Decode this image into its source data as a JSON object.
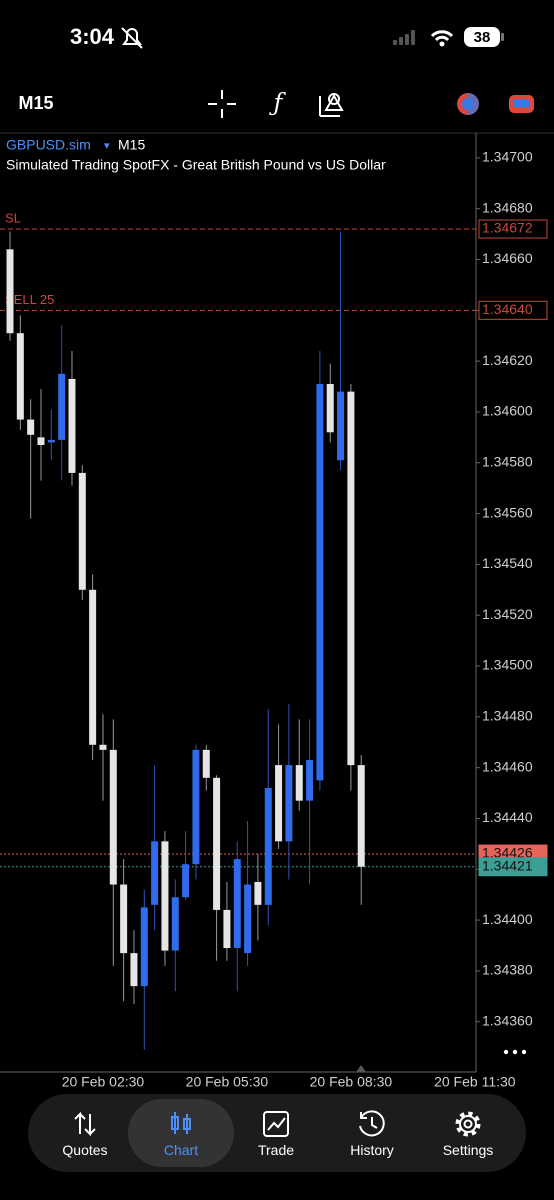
{
  "status_bar": {
    "time": "3:04",
    "battery": "38"
  },
  "toolbar": {
    "timeframe": "M15"
  },
  "chart_data": {
    "type": "candlestick",
    "symbol": "GBPUSD.sim",
    "timeframe": "M15",
    "subtitle": "Simulated Trading SpotFX - Great British Pound vs US Dollar",
    "up_color": "#2f6bea",
    "down_color": "#e6e6e6",
    "x": [
      null,
      null,
      null,
      null,
      null,
      null,
      null,
      null,
      null,
      "20 Feb 02:30",
      null,
      null,
      null,
      null,
      null,
      null,
      null,
      null,
      null,
      null,
      null,
      "20 Feb 05:30",
      null,
      null,
      null,
      null,
      null,
      null,
      null,
      null,
      null,
      null,
      null,
      "20 Feb 08:30",
      null,
      null,
      null,
      null,
      null,
      null,
      null,
      null,
      null,
      null,
      null,
      "20 Feb 11:30"
    ],
    "open": [
      1.34664,
      1.34631,
      1.34597,
      1.3459,
      1.34588,
      1.34589,
      1.34613,
      1.34576,
      1.3453,
      1.34469,
      1.34467,
      1.34414,
      1.34387,
      1.34374,
      1.34406,
      1.34431,
      1.34388,
      1.34409,
      1.34422,
      1.34467,
      1.34456,
      1.34404,
      1.34389,
      1.34387,
      1.34415,
      1.34406,
      1.34461,
      1.34431,
      1.34461,
      1.34447,
      1.34455,
      1.34611,
      1.34581,
      1.34608,
      1.34461,
      null,
      null,
      null,
      null,
      null,
      null,
      null,
      null,
      null,
      null,
      null
    ],
    "high": [
      1.34671,
      1.34638,
      1.34605,
      1.34609,
      1.34601,
      1.34634,
      1.34624,
      1.34579,
      1.34536,
      1.34481,
      1.34479,
      1.34424,
      1.34396,
      1.34412,
      1.34461,
      1.34435,
      1.34416,
      1.34435,
      1.34469,
      1.34469,
      1.34457,
      1.34415,
      1.34431,
      1.34439,
      1.34426,
      1.34483,
      1.34477,
      1.34485,
      1.34479,
      1.34479,
      1.34624,
      1.34619,
      1.34671,
      1.34611,
      1.34465,
      null,
      null,
      null,
      null,
      null,
      null,
      null,
      null,
      null,
      null,
      null
    ],
    "low": [
      1.34628,
      1.34593,
      1.34558,
      1.34573,
      1.34581,
      1.34573,
      1.34571,
      1.34526,
      1.34463,
      1.34447,
      1.34382,
      1.34368,
      1.34367,
      1.34349,
      1.34396,
      1.34382,
      1.34372,
      1.34408,
      1.34416,
      1.34451,
      1.34384,
      1.34384,
      1.34372,
      1.34382,
      1.34392,
      1.34398,
      1.34428,
      1.34416,
      1.34443,
      1.34414,
      1.34451,
      1.34588,
      1.34577,
      1.34451,
      1.34406,
      null,
      null,
      null,
      null,
      null,
      null,
      null,
      null,
      null,
      null,
      null
    ],
    "close": [
      1.34631,
      1.34597,
      1.34591,
      1.34587,
      1.34589,
      1.34615,
      1.34576,
      1.3453,
      1.34469,
      1.34467,
      1.34414,
      1.34387,
      1.34374,
      1.34405,
      1.34431,
      1.34388,
      1.34409,
      1.34422,
      1.34467,
      1.34456,
      1.34404,
      1.34389,
      1.34424,
      1.34414,
      1.34406,
      1.34452,
      1.34431,
      1.34461,
      1.34447,
      1.34463,
      1.34611,
      1.34592,
      1.34608,
      1.34461,
      1.34421,
      null,
      null,
      null,
      null,
      null,
      null,
      null,
      null,
      null,
      null,
      null
    ],
    "ylim": [
      1.34341,
      1.34709
    ],
    "yticks": [
      {
        "value": 1.347,
        "label": "1.34700"
      },
      {
        "value": 1.3468,
        "label": "1.34680"
      },
      {
        "value": 1.3466,
        "label": "1.34660"
      },
      {
        "value": 1.3464,
        "label": "1.34640"
      },
      {
        "value": 1.3462,
        "label": "1.34620"
      },
      {
        "value": 1.346,
        "label": "1.34600"
      },
      {
        "value": 1.3458,
        "label": "1.34580"
      },
      {
        "value": 1.3456,
        "label": "1.34560"
      },
      {
        "value": 1.3454,
        "label": "1.34540"
      },
      {
        "value": 1.3452,
        "label": "1.34520"
      },
      {
        "value": 1.345,
        "label": "1.34500"
      },
      {
        "value": 1.3448,
        "label": "1.34480"
      },
      {
        "value": 1.3446,
        "label": "1.34460"
      },
      {
        "value": 1.3444,
        "label": "1.34440"
      },
      {
        "value": 1.3442,
        "label": "1.34420"
      },
      {
        "value": 1.344,
        "label": "1.34400"
      },
      {
        "value": 1.3438,
        "label": "1.34380"
      },
      {
        "value": 1.3436,
        "label": "1.34360"
      }
    ],
    "levels": [
      {
        "name": "SL",
        "value": 1.34672,
        "label": "1.34672",
        "color": "#c9483d",
        "style": "dashed"
      },
      {
        "name": "SELL 25",
        "value": 1.3464,
        "label": "1.34640",
        "color": "#c9483d",
        "style": "dashed"
      },
      {
        "value": 1.34426,
        "label": "1.34426",
        "color": "#e5655b",
        "style": "dotted",
        "filled": true
      },
      {
        "value": 1.34421,
        "label": "1.34421",
        "color": "#3d9e96",
        "style": "dotted",
        "filled": true
      }
    ]
  },
  "tab_bar": {
    "tabs": [
      "Quotes",
      "Chart",
      "Trade",
      "History",
      "Settings"
    ]
  }
}
